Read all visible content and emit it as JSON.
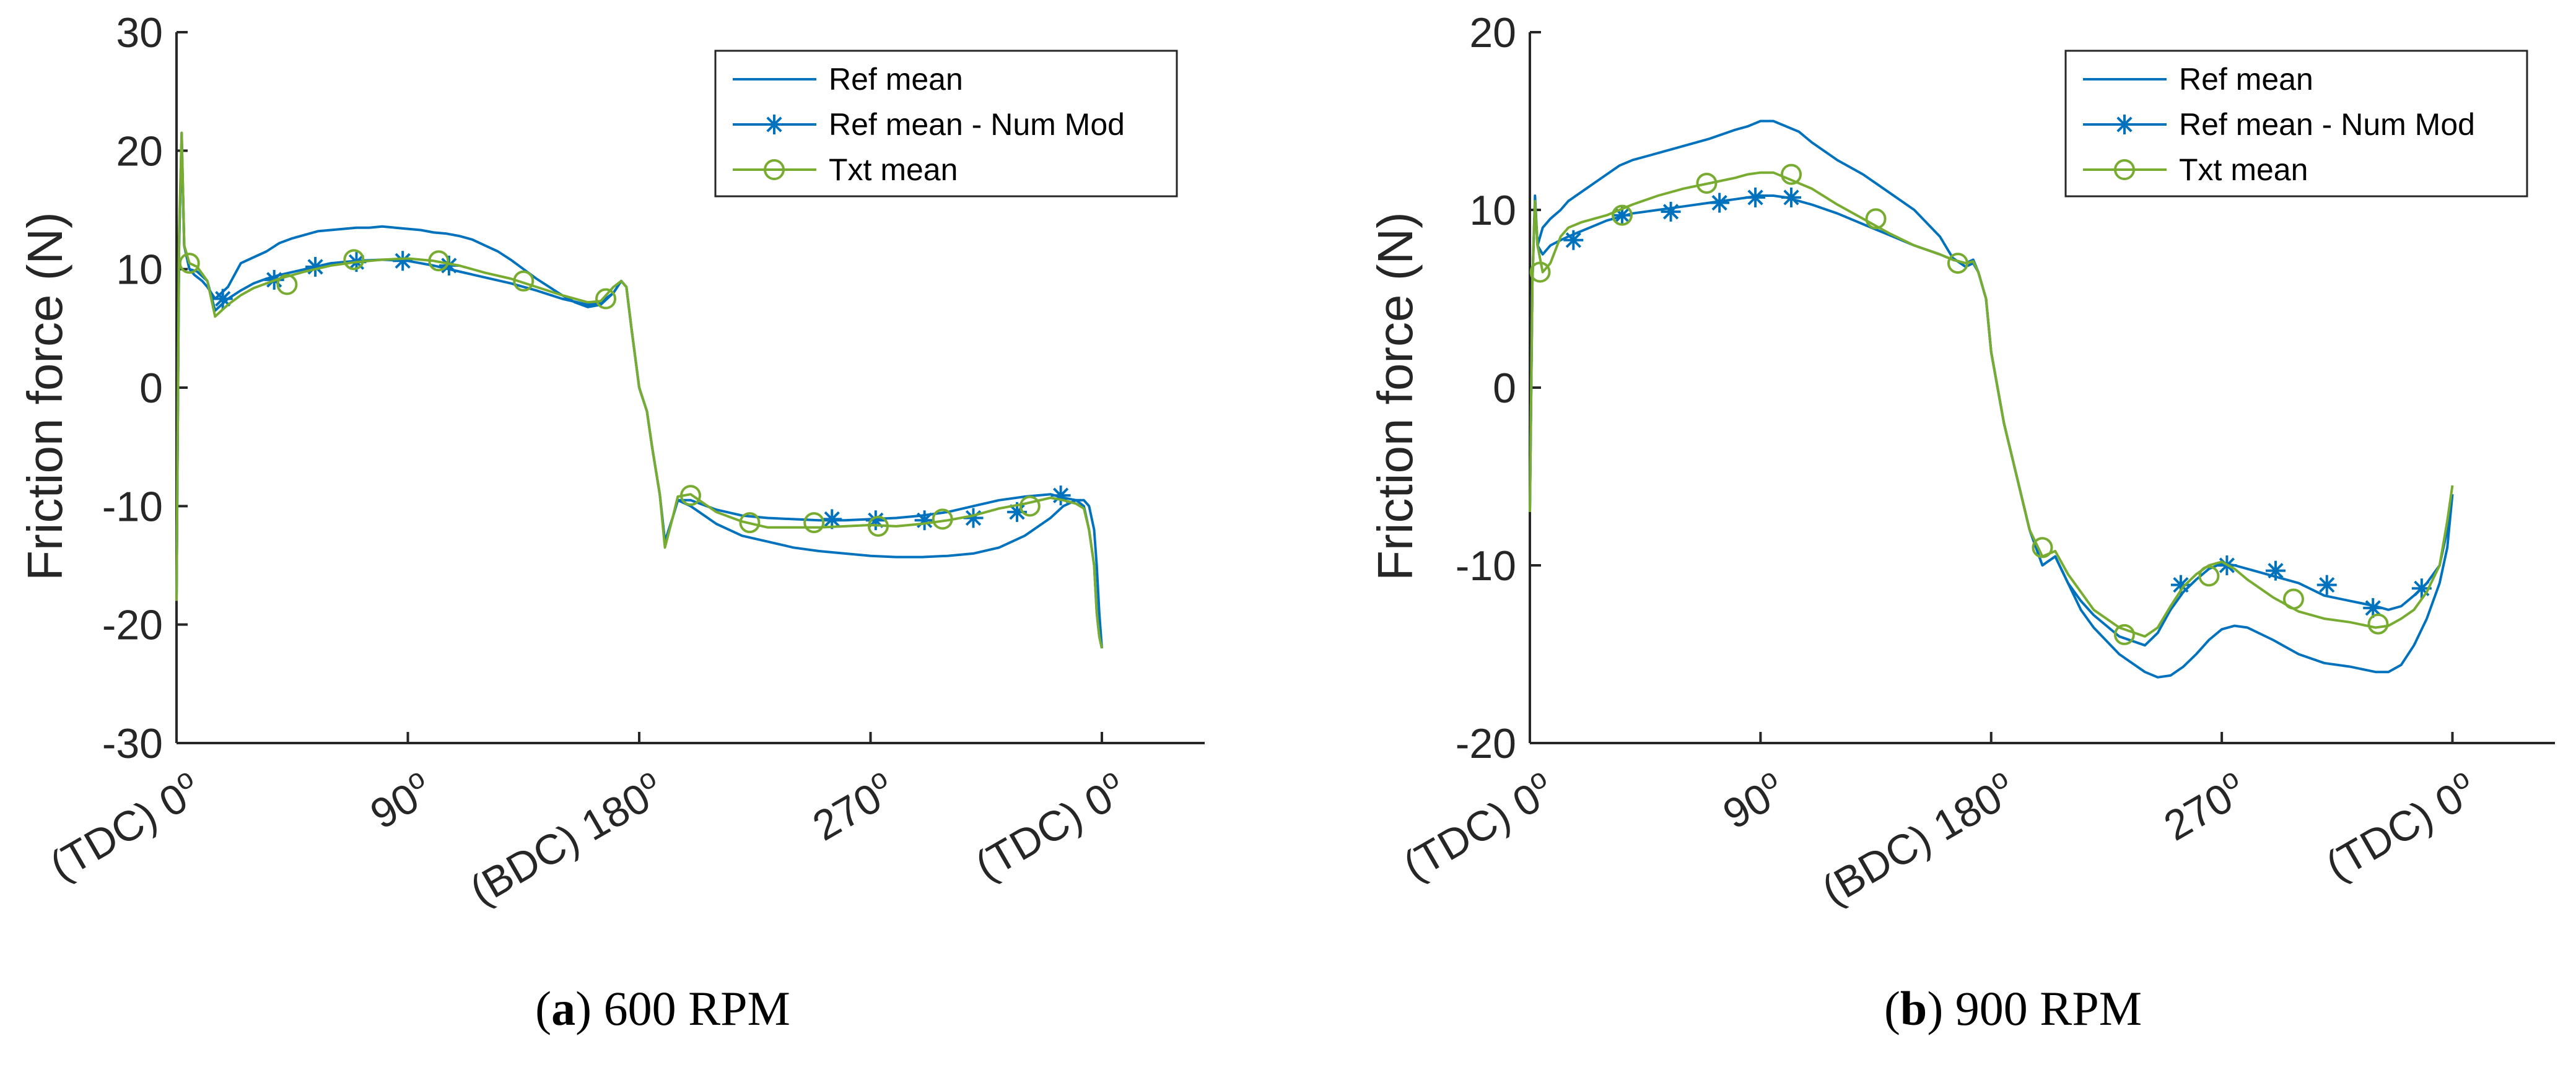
{
  "colors": {
    "ref_mean": "#0072BD",
    "ref_mean_num_mod": "#0072BD",
    "txt_mean": "#77AC30",
    "axis": "#262626"
  },
  "chart_data": [
    {
      "type": "line",
      "panel_letter": "a",
      "caption_text": "600 RPM",
      "xlabel": "",
      "ylabel": "Friction force (N)",
      "xlim": [
        0,
        400
      ],
      "ylim": [
        -30,
        30
      ],
      "x_ticks": [
        0,
        90,
        180,
        270,
        360
      ],
      "x_tick_labels": [
        "(TDC) 0",
        "90",
        "(BDC) 180",
        "270",
        "(TDC) 0"
      ],
      "x_tick_superscripts": [
        "o",
        "o",
        "o",
        "o",
        "o"
      ],
      "y_ticks": [
        -30,
        -20,
        -10,
        0,
        10,
        20,
        30
      ],
      "y_tick_labels": [
        "-30",
        "-20",
        "-10",
        "0",
        "10",
        "20",
        "30"
      ],
      "legend": [
        "Ref mean",
        "Ref mean - Num Mod",
        "Txt mean"
      ],
      "legend_position": "top-right",
      "series": [
        {
          "name": "Ref mean",
          "marker": "none",
          "x": [
            0,
            1,
            2,
            3,
            5,
            7,
            10,
            12,
            15,
            20,
            25,
            30,
            35,
            40,
            45,
            50,
            55,
            60,
            65,
            70,
            75,
            80,
            85,
            90,
            95,
            100,
            105,
            110,
            115,
            120,
            125,
            130,
            135,
            140,
            145,
            150,
            155,
            160,
            165,
            170,
            173,
            175,
            177,
            180,
            183,
            185,
            188,
            190,
            193,
            195,
            200,
            210,
            220,
            230,
            240,
            250,
            260,
            270,
            280,
            290,
            300,
            310,
            320,
            330,
            340,
            345,
            350,
            353,
            355,
            357,
            358,
            359,
            360
          ],
          "y": [
            -18,
            12,
            21.5,
            12,
            10,
            9.5,
            9,
            8.5,
            7.5,
            8.5,
            10.5,
            11,
            11.5,
            12.2,
            12.6,
            12.9,
            13.2,
            13.3,
            13.4,
            13.5,
            13.5,
            13.6,
            13.5,
            13.4,
            13.3,
            13.1,
            13,
            12.8,
            12.5,
            12,
            11.5,
            10.8,
            10,
            9.2,
            8.5,
            7.8,
            7.2,
            6.8,
            7,
            8,
            9,
            8.5,
            5,
            0,
            -2,
            -5,
            -9,
            -13,
            -11,
            -9.5,
            -10,
            -11.5,
            -12.5,
            -13,
            -13.5,
            -13.8,
            -14,
            -14.2,
            -14.3,
            -14.3,
            -14.2,
            -14,
            -13.5,
            -12.5,
            -11,
            -10,
            -9.5,
            -9.5,
            -10,
            -12,
            -15,
            -19,
            -22
          ]
        },
        {
          "name": "Ref mean - Num Mod",
          "marker": "star",
          "x": [
            0,
            1,
            2,
            3,
            5,
            8,
            12,
            15,
            20,
            25,
            30,
            35,
            40,
            50,
            60,
            70,
            80,
            90,
            100,
            110,
            120,
            130,
            140,
            150,
            160,
            165,
            170,
            173,
            175,
            177,
            180,
            183,
            185,
            188,
            190,
            193,
            195,
            200,
            210,
            220,
            230,
            240,
            250,
            260,
            270,
            280,
            290,
            300,
            310,
            320,
            330,
            340,
            345,
            350,
            353,
            355,
            357,
            358,
            359,
            360
          ],
          "y": [
            -18,
            12,
            21,
            12,
            10,
            9.8,
            9,
            6.5,
            7.5,
            8.2,
            8.8,
            9.2,
            9.5,
            10,
            10.5,
            10.7,
            10.8,
            10.7,
            10.3,
            9.8,
            9.3,
            8.8,
            8.2,
            7.5,
            7,
            7.2,
            8,
            9,
            8.5,
            5,
            0,
            -2,
            -5,
            -9,
            -13,
            -11,
            -9.5,
            -9.5,
            -10.3,
            -10.8,
            -11,
            -11.1,
            -11.2,
            -11.2,
            -11.1,
            -11,
            -10.8,
            -10.5,
            -10,
            -9.5,
            -9.2,
            -9,
            -9.3,
            -9.5,
            -10,
            -12,
            -15,
            -19,
            -21,
            -22
          ],
          "marker_x": [
            18,
            38,
            54,
            70,
            88,
            106,
            255,
            272,
            291,
            310,
            327,
            344
          ],
          "marker_y": [
            7.5,
            9.1,
            10.2,
            10.6,
            10.7,
            10.3,
            -11.1,
            -11.2,
            -11.2,
            -11,
            -10.5,
            -9.1
          ]
        },
        {
          "name": "Txt mean",
          "marker": "circle",
          "x": [
            0,
            1,
            2,
            3,
            5,
            8,
            12,
            15,
            20,
            25,
            30,
            35,
            40,
            50,
            60,
            70,
            80,
            90,
            100,
            110,
            120,
            130,
            140,
            150,
            160,
            165,
            170,
            173,
            175,
            177,
            180,
            183,
            185,
            188,
            190,
            193,
            195,
            200,
            210,
            220,
            230,
            240,
            250,
            260,
            270,
            280,
            290,
            300,
            310,
            320,
            330,
            340,
            345,
            350,
            353,
            355,
            357,
            358,
            359,
            360
          ],
          "y": [
            -18,
            13,
            21.5,
            12,
            10.5,
            10.2,
            9,
            6,
            7,
            7.8,
            8.4,
            8.8,
            9.2,
            9.8,
            10.3,
            10.6,
            10.8,
            10.9,
            10.7,
            10.3,
            9.7,
            9.2,
            8.5,
            7.8,
            7.2,
            7.3,
            8.5,
            9,
            8.5,
            5,
            0,
            -2,
            -5,
            -9,
            -13.5,
            -11,
            -9.2,
            -9,
            -10.5,
            -11.3,
            -11.8,
            -11.8,
            -11.8,
            -11.7,
            -11.6,
            -11.7,
            -11.5,
            -11.2,
            -10.8,
            -10.2,
            -9.8,
            -9.3,
            -9.5,
            -9.8,
            -10.2,
            -12,
            -15,
            -19,
            -21,
            -22
          ],
          "marker_x": [
            5,
            43,
            69,
            102,
            135,
            167,
            200,
            223,
            248,
            273,
            298,
            332
          ],
          "marker_y": [
            10.5,
            8.7,
            10.8,
            10.7,
            9,
            7.5,
            -9.1,
            -11.4,
            -11.4,
            -11.7,
            -11.1,
            -10
          ]
        }
      ]
    },
    {
      "type": "line",
      "panel_letter": "b",
      "caption_text": "900 RPM",
      "xlabel": "",
      "ylabel": "Friction force (N)",
      "xlim": [
        0,
        400
      ],
      "ylim": [
        -20,
        20
      ],
      "x_ticks": [
        0,
        90,
        180,
        270,
        360
      ],
      "x_tick_labels": [
        "(TDC) 0",
        "90",
        "(BDC) 180",
        "270",
        "(TDC) 0"
      ],
      "x_tick_superscripts": [
        "o",
        "o",
        "o",
        "o",
        "o"
      ],
      "y_ticks": [
        -20,
        -10,
        0,
        10,
        20
      ],
      "y_tick_labels": [
        "-20",
        "-10",
        "0",
        "10",
        "20"
      ],
      "legend": [
        "Ref mean",
        "Ref mean - Num Mod",
        "Txt mean"
      ],
      "legend_position": "top-right",
      "series": [
        {
          "name": "Ref mean",
          "marker": "none",
          "x": [
            0,
            1,
            2,
            3,
            5,
            8,
            12,
            15,
            20,
            25,
            30,
            35,
            40,
            50,
            60,
            70,
            80,
            85,
            90,
            95,
            100,
            105,
            110,
            120,
            130,
            140,
            150,
            160,
            165,
            170,
            173,
            175,
            178,
            180,
            185,
            190,
            195,
            200,
            205,
            210,
            215,
            220,
            230,
            240,
            245,
            250,
            255,
            260,
            265,
            270,
            275,
            280,
            290,
            300,
            310,
            320,
            330,
            335,
            340,
            345,
            350,
            355,
            358,
            360
          ],
          "y": [
            -7,
            6,
            10.5,
            8,
            9,
            9.5,
            10,
            10.5,
            11,
            11.5,
            12,
            12.5,
            12.8,
            13.2,
            13.6,
            14,
            14.5,
            14.7,
            15,
            15,
            14.7,
            14.4,
            13.8,
            12.8,
            12,
            11,
            10,
            8.5,
            7.3,
            6.8,
            7,
            6.5,
            5,
            2,
            -2,
            -5,
            -8,
            -10,
            -9.5,
            -11,
            -12.5,
            -13.5,
            -15,
            -16,
            -16.3,
            -16.2,
            -15.7,
            -15,
            -14.2,
            -13.6,
            -13.4,
            -13.5,
            -14.2,
            -15,
            -15.5,
            -15.7,
            -16,
            -16,
            -15.6,
            -14.5,
            -13,
            -11,
            -9,
            -6
          ]
        },
        {
          "name": "Ref mean - Num Mod",
          "marker": "star",
          "x": [
            0,
            1,
            2,
            3,
            5,
            8,
            12,
            15,
            20,
            25,
            30,
            35,
            40,
            50,
            60,
            70,
            80,
            85,
            90,
            95,
            100,
            110,
            120,
            130,
            140,
            150,
            160,
            165,
            170,
            173,
            175,
            178,
            180,
            185,
            190,
            195,
            200,
            205,
            210,
            215,
            220,
            230,
            240,
            245,
            250,
            255,
            260,
            265,
            270,
            275,
            280,
            290,
            300,
            310,
            320,
            330,
            335,
            340,
            345,
            350,
            355,
            358,
            360
          ],
          "y": [
            -7,
            6,
            10.8,
            8,
            7.5,
            8,
            8.3,
            8.5,
            8.8,
            9.1,
            9.4,
            9.6,
            9.8,
            10,
            10.2,
            10.4,
            10.6,
            10.7,
            10.8,
            10.8,
            10.7,
            10.3,
            9.8,
            9.2,
            8.6,
            8,
            7.5,
            7.2,
            7,
            7.2,
            6.5,
            5,
            2,
            -2,
            -5,
            -8,
            -10,
            -9.5,
            -11,
            -12,
            -12.8,
            -14,
            -14.5,
            -13.8,
            -12.5,
            -11.5,
            -10.8,
            -10.2,
            -9.9,
            -10,
            -10.2,
            -10.6,
            -11,
            -11.7,
            -12,
            -12.3,
            -12.5,
            -12.3,
            -11.7,
            -11,
            -10,
            -8,
            -6
          ],
          "marker_x": [
            17,
            36,
            55,
            74,
            88,
            102,
            254,
            272,
            291,
            311,
            329,
            348
          ],
          "marker_y": [
            8.3,
            9.7,
            9.9,
            10.4,
            10.7,
            10.7,
            -11.1,
            -10,
            -10.3,
            -11.1,
            -12.4,
            -11.3
          ]
        },
        {
          "name": "Txt mean",
          "marker": "circle",
          "x": [
            0,
            1,
            2,
            3,
            5,
            8,
            12,
            15,
            20,
            25,
            30,
            35,
            40,
            50,
            60,
            70,
            80,
            85,
            90,
            95,
            100,
            110,
            120,
            130,
            140,
            150,
            160,
            165,
            170,
            173,
            175,
            178,
            180,
            185,
            190,
            195,
            200,
            205,
            210,
            215,
            220,
            230,
            240,
            245,
            250,
            255,
            260,
            265,
            270,
            275,
            280,
            290,
            300,
            310,
            320,
            330,
            335,
            340,
            345,
            350,
            355,
            358,
            360
          ],
          "y": [
            -7,
            6,
            10.5,
            8,
            6.5,
            7,
            8.5,
            9,
            9.3,
            9.5,
            9.7,
            10,
            10.3,
            10.8,
            11.2,
            11.5,
            11.8,
            12,
            12.1,
            12.1,
            11.8,
            11.2,
            10.3,
            9.5,
            8.7,
            8,
            7.5,
            7.2,
            7,
            7.1,
            6.5,
            5,
            2,
            -2,
            -5,
            -8,
            -9.5,
            -9.2,
            -10.5,
            -11.5,
            -12.5,
            -13.5,
            -14,
            -13.5,
            -12.3,
            -11.2,
            -10.5,
            -10,
            -9.8,
            -10.2,
            -10.8,
            -11.8,
            -12.6,
            -13,
            -13.2,
            -13.5,
            -13.4,
            -13,
            -12.5,
            -11.5,
            -10,
            -7.5,
            -5.5
          ],
          "marker_x": [
            4,
            36,
            69,
            102,
            135,
            167,
            200,
            232,
            265,
            298,
            331
          ],
          "marker_y": [
            6.5,
            9.7,
            11.5,
            12,
            9.5,
            7,
            -9,
            -13.9,
            -10.6,
            -11.9,
            -13.3
          ]
        }
      ]
    }
  ]
}
